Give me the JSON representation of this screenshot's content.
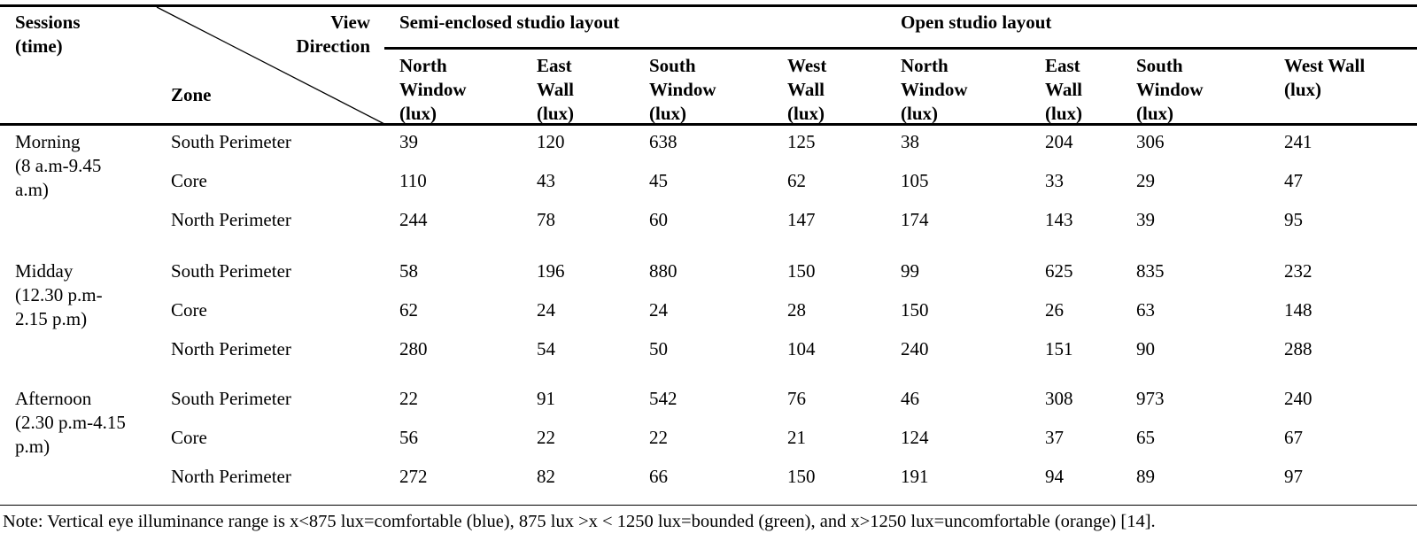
{
  "header": {
    "sessions": [
      "Sessions",
      "(time)"
    ],
    "view": [
      "View",
      "Direction"
    ],
    "zone": "Zone",
    "groups": [
      "Semi-enclosed studio layout",
      "Open studio layout"
    ],
    "columns": [
      [
        "North",
        "Window",
        "(lux)"
      ],
      [
        "East",
        "Wall",
        "(lux)"
      ],
      [
        "South",
        "Window",
        "(lux)"
      ],
      [
        "West",
        "Wall",
        "(lux)"
      ],
      [
        "North",
        "Window",
        "(lux)"
      ],
      [
        "East",
        "Wall",
        "(lux)"
      ],
      [
        "South",
        "Window",
        "(lux)"
      ],
      [
        "West Wall",
        "(lux)"
      ]
    ]
  },
  "sessions": [
    {
      "label": [
        "Morning",
        "(8 a.m-9.45",
        "a.m)"
      ],
      "rows": [
        {
          "zone": "South Perimeter",
          "values": [
            "39",
            "120",
            "638",
            "125",
            "38",
            "204",
            "306",
            "241"
          ]
        },
        {
          "zone": "Core",
          "values": [
            "110",
            "43",
            "45",
            "62",
            "105",
            "33",
            "29",
            "47"
          ]
        },
        {
          "zone": "North Perimeter",
          "values": [
            "244",
            "78",
            "60",
            "147",
            "174",
            "143",
            "39",
            "95"
          ]
        }
      ]
    },
    {
      "label": [
        "Midday",
        "(12.30 p.m-",
        "2.15 p.m)"
      ],
      "rows": [
        {
          "zone": "South Perimeter",
          "values": [
            "58",
            "196",
            "880",
            "150",
            "99",
            "625",
            "835",
            "232"
          ]
        },
        {
          "zone": "Core",
          "values": [
            "62",
            "24",
            "24",
            "28",
            "150",
            "26",
            "63",
            "148"
          ]
        },
        {
          "zone": "North Perimeter",
          "values": [
            "280",
            "54",
            "50",
            "104",
            "240",
            "151",
            "90",
            "288"
          ]
        }
      ]
    },
    {
      "label": [
        "Afternoon",
        "(2.30 p.m-4.15",
        "p.m)"
      ],
      "rows": [
        {
          "zone": "South Perimeter",
          "values": [
            "22",
            "91",
            "542",
            "76",
            "46",
            "308",
            "973",
            "240"
          ]
        },
        {
          "zone": "Core",
          "values": [
            "56",
            "22",
            "22",
            "21",
            "124",
            "37",
            "65",
            "67"
          ]
        },
        {
          "zone": "North Perimeter",
          "values": [
            "272",
            "82",
            "66",
            "150",
            "191",
            "94",
            "89",
            "97"
          ]
        }
      ]
    }
  ],
  "note": "Note: Vertical eye illuminance range is x<875 lux=comfortable (blue), 875 lux >x < 1250 lux=bounded (green), and x>1250 lux=uncomfortable (orange) [14]."
}
